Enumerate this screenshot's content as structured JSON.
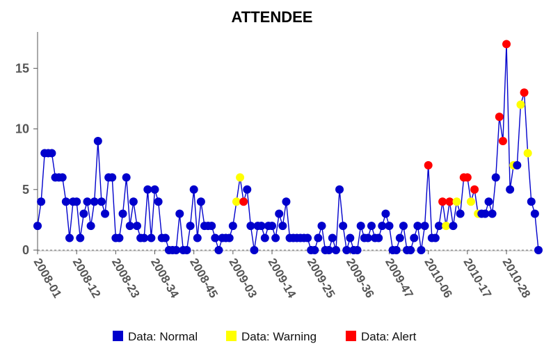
{
  "chart_data": {
    "type": "line",
    "title": "ATTENDEE",
    "xlabel": "",
    "ylabel": "",
    "ylim": [
      0,
      18
    ],
    "yticks": [
      "0",
      "5",
      "10",
      "15"
    ],
    "ytick_values": [
      0,
      5,
      10,
      15
    ],
    "x_tick_labels": [
      "2008-01",
      "2008-12",
      "2008-23",
      "2008-34",
      "2008-45",
      "2009-03",
      "2009-14",
      "2009-25",
      "2009-36",
      "2009-47",
      "2010-06",
      "2010-17",
      "2010-28"
    ],
    "x_tick_index": [
      0,
      11,
      22,
      33,
      44,
      55,
      66,
      77,
      88,
      99,
      110,
      121,
      132
    ],
    "grid": false,
    "baseline_dashed": true,
    "line_color": "#0000cc",
    "status_colors": {
      "normal": "#0000cc",
      "warning": "#ffff00",
      "alert": "#ff0000"
    },
    "legend_placement": "bottom",
    "legend": [
      {
        "key": "normal",
        "label": "Data: Normal"
      },
      {
        "key": "warning",
        "label": "Data: Warning"
      },
      {
        "key": "alert",
        "label": "Data: Alert"
      }
    ],
    "series": [
      {
        "values": [
          2,
          4,
          8,
          8,
          8,
          6,
          6,
          6,
          4,
          1,
          4,
          4,
          1,
          3,
          4,
          2,
          4,
          9,
          4,
          3,
          6,
          6,
          1,
          1,
          3,
          6,
          2,
          4,
          2,
          1,
          1,
          5,
          1,
          5,
          4,
          1,
          1,
          0,
          0,
          0,
          3,
          0,
          0,
          2,
          5,
          1,
          4,
          2,
          2,
          2,
          1,
          0,
          1,
          1,
          1,
          2,
          4,
          6,
          4,
          5,
          2,
          0,
          2,
          2,
          1,
          2,
          2,
          1,
          3,
          2,
          4,
          1,
          1,
          1,
          1,
          1,
          1,
          0,
          0,
          1,
          2,
          0,
          0,
          1,
          0,
          5,
          2,
          0,
          1,
          0,
          0,
          2,
          1,
          1,
          2,
          1,
          1,
          2,
          3,
          2,
          0,
          0,
          1,
          2,
          0,
          0,
          1,
          2,
          0,
          2,
          7,
          1,
          1,
          2,
          4,
          2,
          4,
          2,
          4,
          3,
          6,
          6,
          4,
          5,
          3,
          3,
          3,
          4,
          3,
          6,
          11,
          9,
          17,
          5,
          7,
          7,
          12,
          13,
          8,
          4,
          3,
          0
        ],
        "status": [
          "N",
          "N",
          "N",
          "N",
          "N",
          "N",
          "N",
          "N",
          "N",
          "N",
          "N",
          "N",
          "N",
          "N",
          "N",
          "N",
          "N",
          "N",
          "N",
          "N",
          "N",
          "N",
          "N",
          "N",
          "N",
          "N",
          "N",
          "N",
          "N",
          "N",
          "N",
          "N",
          "N",
          "N",
          "N",
          "N",
          "N",
          "N",
          "N",
          "N",
          "N",
          "N",
          "N",
          "N",
          "N",
          "N",
          "N",
          "N",
          "N",
          "N",
          "N",
          "N",
          "N",
          "N",
          "N",
          "N",
          "W",
          "W",
          "A",
          "N",
          "N",
          "N",
          "N",
          "N",
          "N",
          "N",
          "N",
          "N",
          "N",
          "N",
          "N",
          "N",
          "N",
          "N",
          "N",
          "N",
          "N",
          "N",
          "N",
          "N",
          "N",
          "N",
          "N",
          "N",
          "N",
          "N",
          "N",
          "N",
          "N",
          "N",
          "N",
          "N",
          "N",
          "N",
          "N",
          "N",
          "N",
          "N",
          "N",
          "N",
          "N",
          "N",
          "N",
          "N",
          "N",
          "N",
          "N",
          "N",
          "N",
          "N",
          "A",
          "N",
          "N",
          "N",
          "A",
          "W",
          "A",
          "N",
          "W",
          "N",
          "A",
          "A",
          "W",
          "A",
          "W",
          "N",
          "N",
          "N",
          "N",
          "N",
          "A",
          "A",
          "A",
          "N",
          "W",
          "N",
          "W",
          "A",
          "W",
          "N",
          "N",
          "N"
        ]
      }
    ]
  }
}
